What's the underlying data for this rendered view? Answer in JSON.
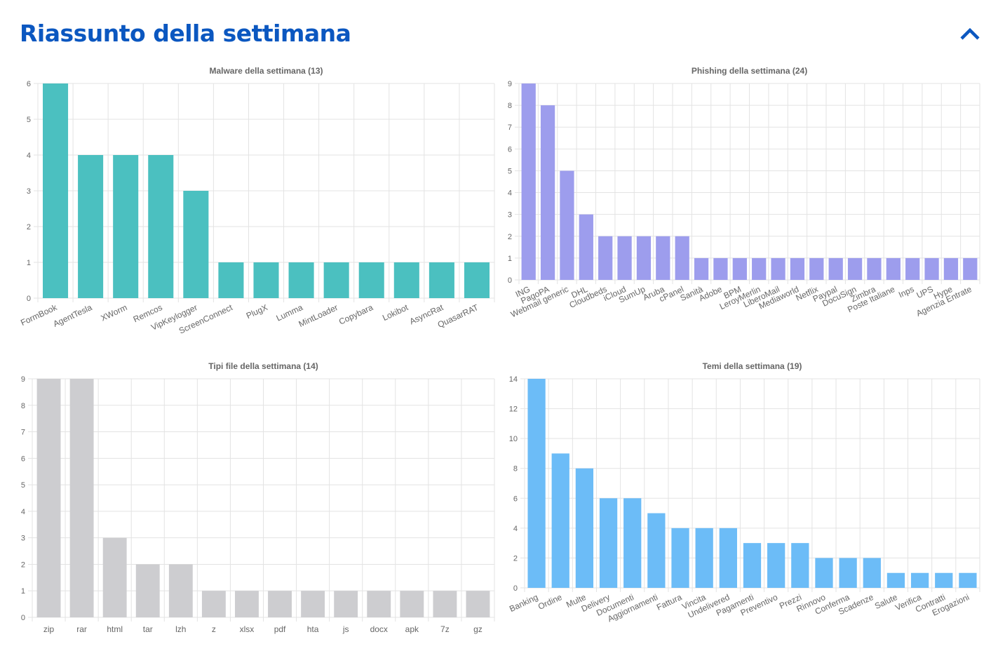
{
  "header": {
    "title": "Riassunto della settimana",
    "collapse_icon": "chevron-up-icon",
    "accent_color": "#0b57c0"
  },
  "chart_data": [
    {
      "type": "bar",
      "title": "Malware della settimana (13)",
      "categories": [
        "FormBook",
        "AgentTesla",
        "XWorm",
        "Remcos",
        "VipKeylogger",
        "ScreenConnect",
        "PlugX",
        "Lumma",
        "MintLoader",
        "Copybara",
        "Lokibot",
        "AsyncRat",
        "QuasarRAT"
      ],
      "values": [
        6,
        4,
        4,
        4,
        3,
        1,
        1,
        1,
        1,
        1,
        1,
        1,
        1
      ],
      "ylim": [
        0,
        6
      ],
      "yticks": [
        0,
        1,
        2,
        3,
        4,
        5,
        6
      ],
      "color": "#4bc0c0",
      "grid": true,
      "xlabel_rotated": true
    },
    {
      "type": "bar",
      "title": "Phishing della settimana (24)",
      "categories": [
        "ING",
        "PagoPA",
        "Webmail generic",
        "DHL",
        "Cloudbeds",
        "iCloud",
        "SumUp",
        "Aruba",
        "cPanel",
        "Sanità",
        "Adobe",
        "BPM",
        "LeroyMerlin",
        "LiberoMail",
        "Mediaworld",
        "Netflix",
        "Paypal",
        "DocuSign",
        "Zimbra",
        "Poste Italiane",
        "Inps",
        "UPS",
        "Hype",
        "Agenzia Entrate"
      ],
      "values": [
        9,
        8,
        5,
        3,
        2,
        2,
        2,
        2,
        2,
        1,
        1,
        1,
        1,
        1,
        1,
        1,
        1,
        1,
        1,
        1,
        1,
        1,
        1,
        1
      ],
      "ylim": [
        0,
        9
      ],
      "yticks": [
        0,
        1,
        2,
        3,
        4,
        5,
        6,
        7,
        8,
        9
      ],
      "color": "#9d9ded",
      "grid": true,
      "xlabel_rotated": true
    },
    {
      "type": "bar",
      "title": "Tipi file della settimana (14)",
      "categories": [
        "zip",
        "rar",
        "html",
        "tar",
        "lzh",
        "z",
        "xlsx",
        "pdf",
        "hta",
        "js",
        "docx",
        "apk",
        "7z",
        "gz"
      ],
      "values": [
        9,
        9,
        3,
        2,
        2,
        1,
        1,
        1,
        1,
        1,
        1,
        1,
        1,
        1
      ],
      "ylim": [
        0,
        9
      ],
      "yticks": [
        0,
        1,
        2,
        3,
        4,
        5,
        6,
        7,
        8,
        9
      ],
      "color": "#cdcdd0",
      "grid": true,
      "xlabel_rotated": false
    },
    {
      "type": "bar",
      "title": "Temi della settimana (19)",
      "categories": [
        "Banking",
        "Ordine",
        "Multe",
        "Delivery",
        "Documenti",
        "Aggiornamenti",
        "Fattura",
        "Vincita",
        "Undelivered",
        "Pagamenti",
        "Preventivo",
        "Prezzi",
        "Rinnovo",
        "Conferma",
        "Scadenze",
        "Salute",
        "Verifica",
        "Contratti",
        "Erogazioni"
      ],
      "values": [
        14,
        9,
        8,
        6,
        6,
        5,
        4,
        4,
        4,
        3,
        3,
        3,
        2,
        2,
        2,
        1,
        1,
        1,
        1
      ],
      "ylim": [
        0,
        14
      ],
      "yticks": [
        0,
        2,
        4,
        6,
        8,
        10,
        12,
        14
      ],
      "color": "#6cbcf7",
      "grid": true,
      "xlabel_rotated": true
    }
  ]
}
